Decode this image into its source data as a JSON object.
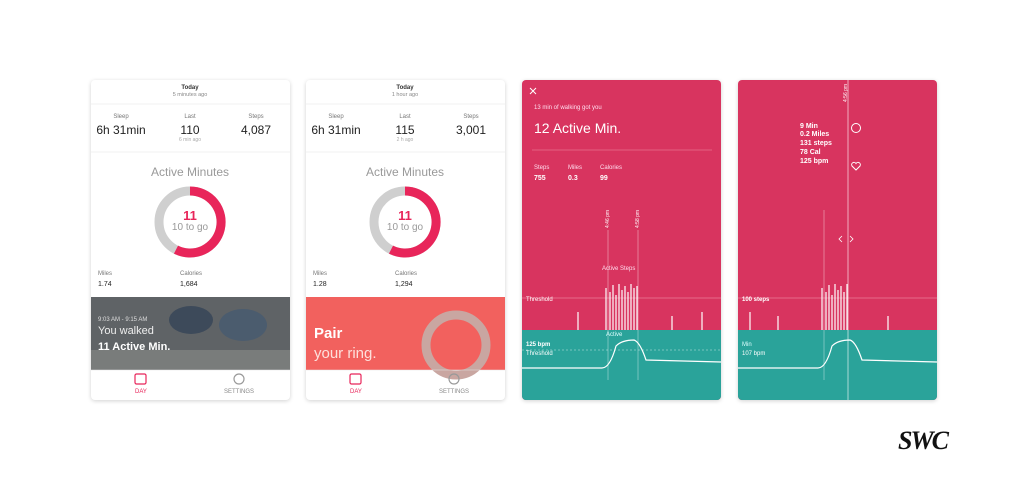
{
  "screens": [
    {
      "date": "Today",
      "updated": "5 minutes ago",
      "stats": [
        {
          "label": "Sleep",
          "value": "6h 31min"
        },
        {
          "label": "Last",
          "value": "110",
          "note": "6 min ago"
        },
        {
          "label": "Steps",
          "value": "4,087"
        }
      ],
      "ring_title": "Active Minutes",
      "ring_value": "11",
      "ring_remaining": "10 to go",
      "totals": [
        {
          "label": "Miles",
          "value": "1.74"
        },
        {
          "label": "Calories",
          "value": "1,684"
        }
      ],
      "banner": {
        "time": "9:03 AM - 9:15 AM",
        "line1": "You walked",
        "line2": "11 Active Min."
      },
      "nav": [
        "DAY",
        "SETTINGS"
      ]
    },
    {
      "date": "Today",
      "updated": "1 hour ago",
      "stats": [
        {
          "label": "Sleep",
          "value": "6h 31min"
        },
        {
          "label": "Last",
          "value": "115",
          "note": "2 h ago"
        },
        {
          "label": "Steps",
          "value": "3,001"
        }
      ],
      "ring_title": "Active Minutes",
      "ring_value": "11",
      "ring_remaining": "10 to go",
      "totals": [
        {
          "label": "Miles",
          "value": "1.28"
        },
        {
          "label": "Calories",
          "value": "1,294"
        }
      ],
      "banner": {
        "line1": "Pair",
        "line2": "your ring."
      },
      "nav": [
        "DAY",
        "SETTINGS"
      ]
    },
    {
      "intro": "13 min of walking got you",
      "headline": "12 Active Min.",
      "stats": [
        {
          "label": "Steps",
          "value": "755"
        },
        {
          "label": "Miles",
          "value": "0.3"
        },
        {
          "label": "Calories",
          "value": "99"
        }
      ],
      "chart": {
        "threshold": "Threshold",
        "active_steps": "Active Steps",
        "active": "Active",
        "hr": "125 bpm",
        "hr_threshold": "Threshold",
        "times": [
          "4:46 pm",
          "4:58 pm"
        ]
      }
    },
    {
      "time": "4:56 pm",
      "summary": [
        "9 Min",
        "0.2 Miles",
        "131 steps",
        "78 Cal",
        "125 bpm"
      ],
      "steps_marker": "100 steps",
      "hr_label": "Min",
      "hr_value": "107 bpm"
    }
  ],
  "logo": "SWC"
}
